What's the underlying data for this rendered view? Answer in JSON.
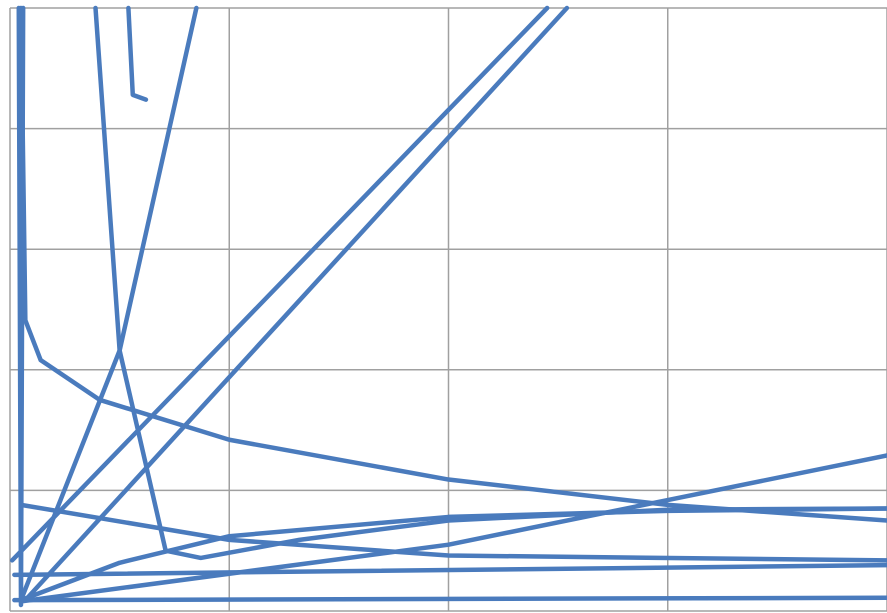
{
  "chart_data": {
    "type": "line",
    "color": "#4a7bbd",
    "grid": true,
    "xlim": [
      0,
      4
    ],
    "ylim": [
      0,
      5
    ],
    "xticks": [
      0,
      1,
      2,
      3,
      4
    ],
    "yticks": [
      0,
      1,
      2,
      3,
      4,
      5
    ],
    "series": [
      {
        "x": [
          0.01,
          2.45
        ],
        "values": [
          0.42,
          5
        ]
      },
      {
        "x": [
          0.07,
          2.54
        ],
        "values": [
          0.09,
          5
        ]
      },
      {
        "x": [
          0.05,
          0.07,
          0.14,
          0.41,
          1.0,
          2.0,
          3.0,
          4.0
        ],
        "values": [
          5,
          2.41,
          2.08,
          1.75,
          1.42,
          1.09,
          0.88,
          0.75
        ]
      },
      {
        "x": [
          0.39,
          0.5,
          0.71,
          0.87,
          1.32,
          2.0,
          3.0,
          4.0
        ],
        "values": [
          5,
          2.16,
          0.5,
          0.44,
          0.59,
          0.75,
          0.84,
          0.85
        ]
      },
      {
        "x": [
          0.54,
          0.56,
          0.62
        ],
        "values": [
          5,
          4.28,
          4.24
        ]
      },
      {
        "x": [
          0.05,
          0.5,
          0.85
        ],
        "values": [
          0.09,
          2.16,
          5
        ]
      },
      {
        "x": [
          0.05,
          2.0,
          3.0,
          4.0
        ],
        "values": [
          0.08,
          0.55,
          0.92,
          1.29
        ]
      },
      {
        "x": [
          0.05,
          1.0,
          2.0,
          4.0
        ],
        "values": [
          0.88,
          0.59,
          0.46,
          0.42
        ]
      },
      {
        "x": [
          0.02,
          4.0
        ],
        "values": [
          0.3,
          0.38
        ]
      },
      {
        "x": [
          0.02,
          4.0
        ],
        "values": [
          0.09,
          0.11
        ]
      },
      {
        "x": [
          0.05,
          0.5,
          1.0,
          2.0,
          3.0,
          4.0
        ],
        "values": [
          0.09,
          0.4,
          0.62,
          0.78,
          0.83,
          0.85
        ]
      },
      {
        "x": [
          0.04,
          0.05,
          0.06
        ],
        "values": [
          5,
          0.05,
          5
        ]
      }
    ]
  }
}
